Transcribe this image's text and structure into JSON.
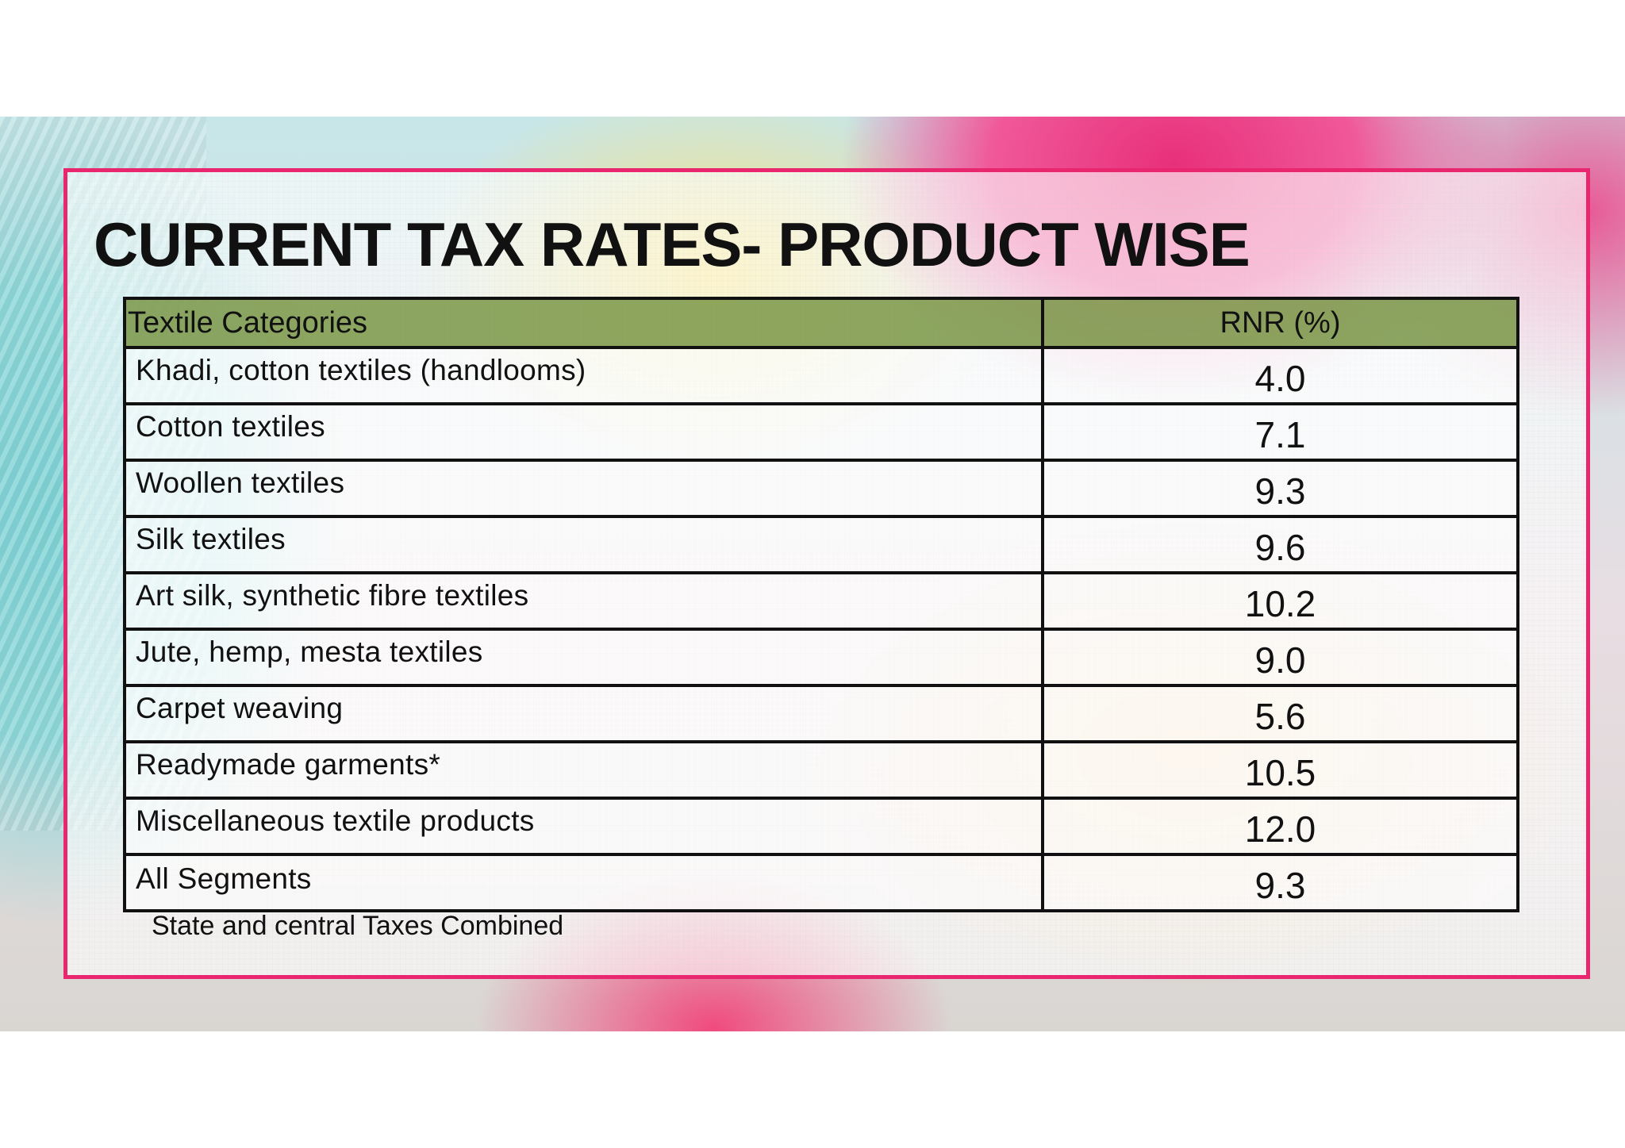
{
  "slide": {
    "title": "CURRENT TAX RATES- PRODUCT WISE",
    "frame_color": "#e8276f",
    "header_color": "#7a9646",
    "background_description_colors": [
      "#7fd3d6",
      "#e8307a",
      "#f6e27a",
      "#f2d2a0"
    ]
  },
  "table": {
    "headers": {
      "category": "Textile Categories",
      "rate": "RNR (%)"
    },
    "rows": [
      {
        "category": "Khadi, cotton textiles (handlooms)",
        "rate": "4.0"
      },
      {
        "category": "Cotton textiles",
        "rate": "7.1"
      },
      {
        "category": "Woollen textiles",
        "rate": "9.3"
      },
      {
        "category": "Silk textiles",
        "rate": "9.6"
      },
      {
        "category": "Art silk, synthetic fibre textiles",
        "rate": "10.2"
      },
      {
        "category": "Jute, hemp, mesta textiles",
        "rate": "9.0"
      },
      {
        "category": "Carpet weaving",
        "rate": "5.6"
      },
      {
        "category": "Readymade garments*",
        "rate": "10.5"
      },
      {
        "category": "Miscellaneous textile products",
        "rate": "12.0"
      },
      {
        "category": "All Segments",
        "rate": "9.3"
      }
    ],
    "footnote": "State and central Taxes Combined"
  }
}
